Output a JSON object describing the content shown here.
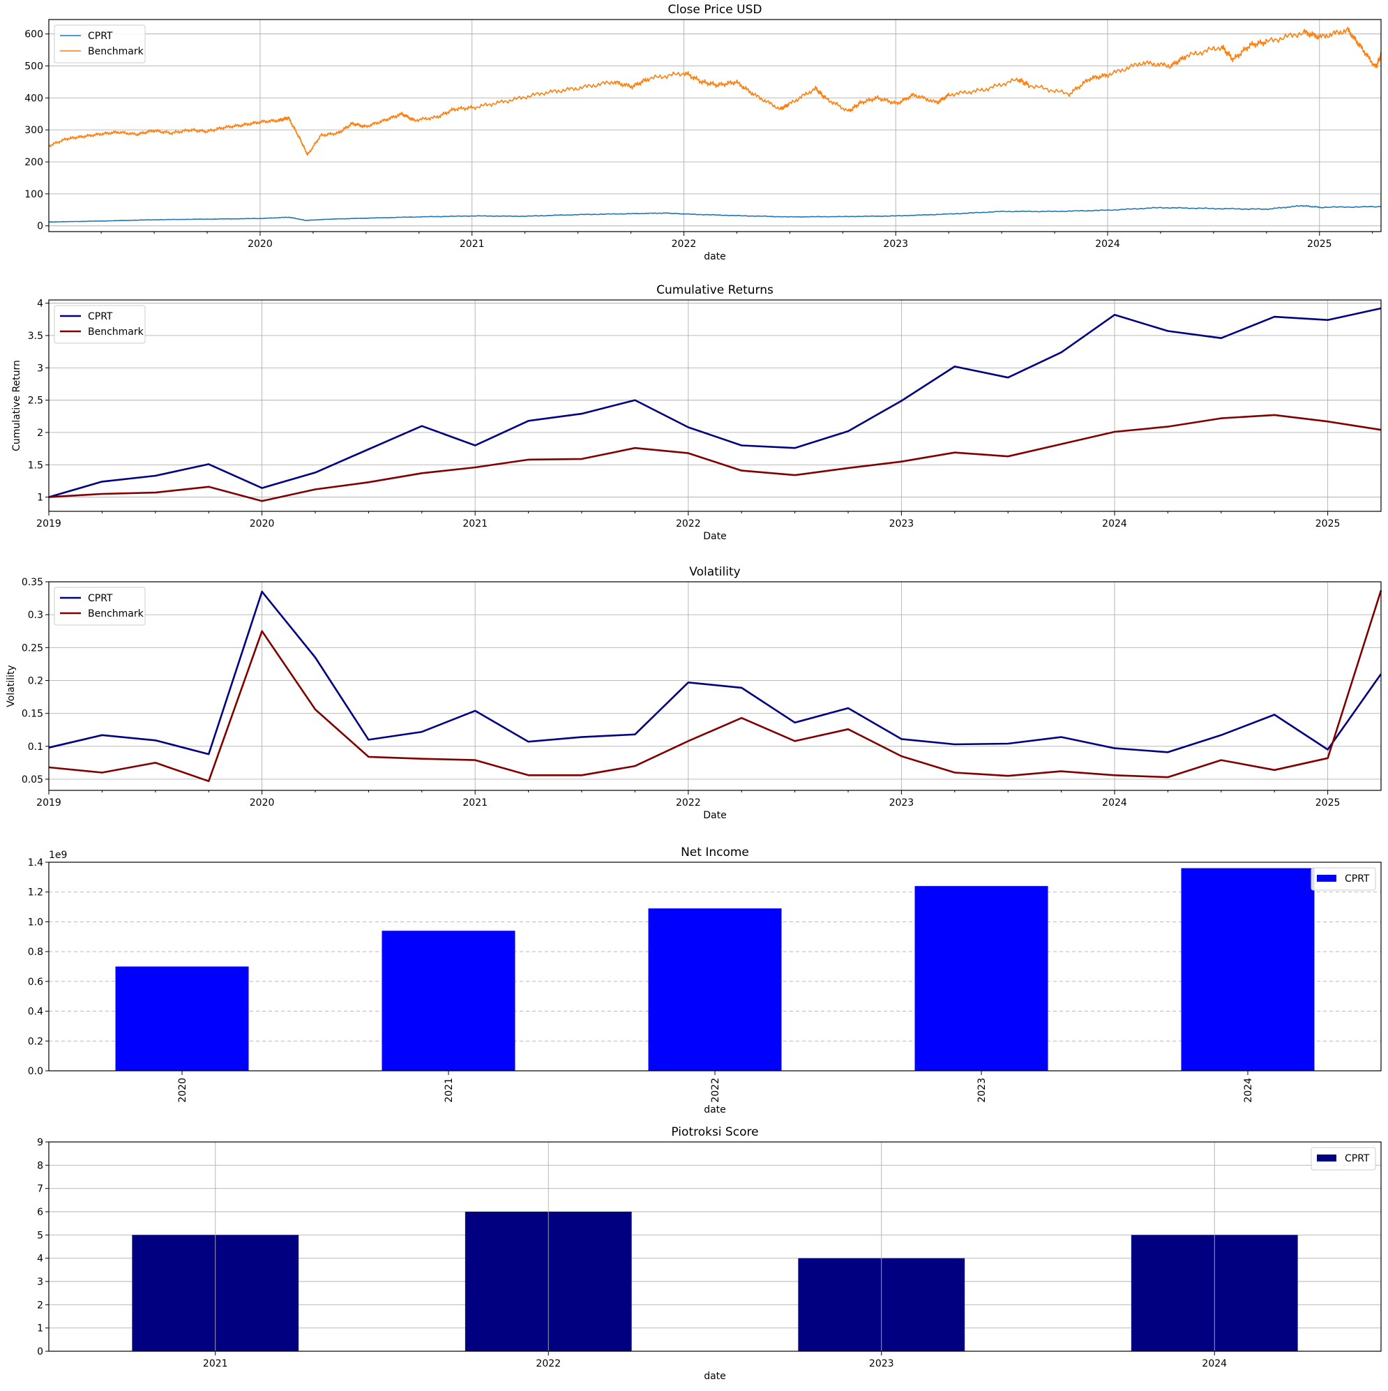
{
  "chart_data": [
    {
      "type": "line",
      "title": "Close Price USD",
      "xlabel": "date",
      "ylabel": "",
      "ylim": [
        -18,
        645
      ],
      "xlim": [
        "2019-01-02",
        "2025-04-17"
      ],
      "yticks": [
        0,
        100,
        200,
        300,
        400,
        500,
        600
      ],
      "xticks": [
        "2020",
        "2021",
        "2022",
        "2023",
        "2024",
        "2025"
      ],
      "grid": "both",
      "legend": "top-left",
      "series": [
        {
          "name": "CPRT",
          "color": "#1f77b4",
          "x": [
            "2019-01-02",
            "2019-04-01",
            "2019-07-01",
            "2019-10-01",
            "2020-01-02",
            "2020-02-20",
            "2020-03-20",
            "2020-05-01",
            "2020-07-01",
            "2020-10-01",
            "2021-01-04",
            "2021-04-01",
            "2021-07-01",
            "2021-10-01",
            "2021-12-01",
            "2022-01-03",
            "2022-04-01",
            "2022-07-01",
            "2022-10-03",
            "2023-01-03",
            "2023-04-03",
            "2023-07-03",
            "2023-10-02",
            "2024-01-02",
            "2024-04-01",
            "2024-07-01",
            "2024-10-01",
            "2024-12-02",
            "2025-01-02",
            "2025-04-17"
          ],
          "values": [
            12,
            15,
            19,
            21,
            23,
            27,
            17,
            21,
            24,
            28,
            31,
            30,
            35,
            38,
            40,
            37,
            32,
            28,
            29,
            31,
            37,
            45,
            45,
            49,
            57,
            54,
            52,
            63,
            58,
            60
          ]
        },
        {
          "name": "Benchmark",
          "color": "#ff7f0e",
          "x": [
            "2019-01-02",
            "2019-02-01",
            "2019-03-01",
            "2019-04-01",
            "2019-05-01",
            "2019-06-03",
            "2019-07-01",
            "2019-08-01",
            "2019-09-03",
            "2019-10-01",
            "2019-11-01",
            "2019-12-02",
            "2020-01-02",
            "2020-02-03",
            "2020-02-19",
            "2020-03-09",
            "2020-03-23",
            "2020-04-15",
            "2020-05-15",
            "2020-06-08",
            "2020-07-01",
            "2020-08-03",
            "2020-09-02",
            "2020-09-23",
            "2020-11-02",
            "2020-12-01",
            "2021-01-04",
            "2021-03-01",
            "2021-05-03",
            "2021-07-01",
            "2021-09-01",
            "2021-10-04",
            "2021-11-01",
            "2022-01-03",
            "2022-02-01",
            "2022-03-01",
            "2022-04-01",
            "2022-05-02",
            "2022-06-16",
            "2022-07-01",
            "2022-08-16",
            "2022-09-01",
            "2022-10-12",
            "2022-11-01",
            "2022-12-01",
            "2023-01-03",
            "2023-02-01",
            "2023-03-13",
            "2023-04-03",
            "2023-06-01",
            "2023-07-31",
            "2023-08-18",
            "2023-10-27",
            "2023-12-01",
            "2024-01-02",
            "2024-03-01",
            "2024-04-19",
            "2024-05-15",
            "2024-07-16",
            "2024-08-05",
            "2024-09-03",
            "2024-10-01",
            "2024-12-06",
            "2025-01-02",
            "2025-02-19",
            "2025-03-13",
            "2025-04-08",
            "2025-04-17"
          ],
          "values": [
            250,
            272,
            279,
            287,
            293,
            286,
            298,
            290,
            300,
            295,
            308,
            315,
            325,
            330,
            338,
            275,
            222,
            283,
            290,
            320,
            310,
            330,
            350,
            330,
            340,
            365,
            370,
            390,
            415,
            430,
            450,
            435,
            460,
            478,
            450,
            440,
            450,
            410,
            365,
            380,
            430,
            400,
            358,
            385,
            400,
            382,
            410,
            385,
            410,
            425,
            458,
            440,
            412,
            460,
            472,
            510,
            500,
            530,
            560,
            520,
            565,
            575,
            605,
            590,
            612,
            560,
            495,
            535
          ]
        }
      ]
    },
    {
      "type": "line",
      "title": "Cumulative Returns",
      "xlabel": "Date",
      "ylabel": "Cumulative Return",
      "ylim": [
        0.78,
        4.05
      ],
      "xlim": [
        2019.0,
        2025.25
      ],
      "yticks": [
        1.0,
        1.5,
        2.0,
        2.5,
        3.0,
        3.5,
        4.0
      ],
      "xticks": [
        "2019",
        "2020",
        "2021",
        "2022",
        "2023",
        "2024",
        "2025"
      ],
      "grid": "both",
      "legend": "top-left",
      "x": [
        2019.0,
        2019.25,
        2019.5,
        2019.75,
        2020.0,
        2020.25,
        2020.5,
        2020.75,
        2021.0,
        2021.25,
        2021.5,
        2021.75,
        2022.0,
        2022.25,
        2022.5,
        2022.75,
        2023.0,
        2023.25,
        2023.5,
        2023.75,
        2024.0,
        2024.25,
        2024.5,
        2024.75,
        2025.0,
        2025.25
      ],
      "series": [
        {
          "name": "CPRT",
          "color": "#000080",
          "values": [
            1.0,
            1.24,
            1.33,
            1.51,
            1.14,
            1.38,
            1.74,
            2.1,
            1.8,
            2.18,
            2.29,
            2.5,
            2.08,
            1.8,
            1.76,
            2.02,
            2.49,
            3.02,
            2.85,
            3.24,
            3.82,
            3.57,
            3.46,
            3.79,
            3.74,
            3.92
          ]
        },
        {
          "name": "Benchmark",
          "color": "#800000",
          "values": [
            1.0,
            1.05,
            1.07,
            1.16,
            0.94,
            1.12,
            1.23,
            1.37,
            1.46,
            1.58,
            1.59,
            1.76,
            1.68,
            1.41,
            1.34,
            1.45,
            1.55,
            1.69,
            1.63,
            1.82,
            2.01,
            2.09,
            2.22,
            2.27,
            2.17,
            2.04
          ]
        }
      ]
    },
    {
      "type": "line",
      "title": "Volatility",
      "xlabel": "Date",
      "ylabel": "Volatility",
      "ylim": [
        0.033,
        0.35
      ],
      "xlim": [
        2019.0,
        2025.25
      ],
      "yticks": [
        0.05,
        0.1,
        0.15,
        0.2,
        0.25,
        0.3,
        0.35
      ],
      "xticks": [
        "2019",
        "2020",
        "2021",
        "2022",
        "2023",
        "2024",
        "2025"
      ],
      "grid": "both",
      "legend": "top-left",
      "x": [
        2019.0,
        2019.25,
        2019.5,
        2019.75,
        2020.0,
        2020.25,
        2020.5,
        2020.75,
        2021.0,
        2021.25,
        2021.5,
        2021.75,
        2022.0,
        2022.25,
        2022.5,
        2022.75,
        2023.0,
        2023.25,
        2023.5,
        2023.75,
        2024.0,
        2024.25,
        2024.5,
        2024.75,
        2025.0,
        2025.25
      ],
      "series": [
        {
          "name": "CPRT",
          "color": "#000080",
          "values": [
            0.098,
            0.117,
            0.109,
            0.088,
            0.335,
            0.235,
            0.11,
            0.122,
            0.154,
            0.107,
            0.114,
            0.118,
            0.197,
            0.189,
            0.136,
            0.158,
            0.111,
            0.103,
            0.104,
            0.114,
            0.097,
            0.091,
            0.117,
            0.148,
            0.095,
            0.21
          ]
        },
        {
          "name": "Benchmark",
          "color": "#800000",
          "values": [
            0.068,
            0.06,
            0.075,
            0.047,
            0.275,
            0.156,
            0.084,
            0.081,
            0.079,
            0.056,
            0.056,
            0.07,
            0.108,
            0.143,
            0.108,
            0.126,
            0.085,
            0.06,
            0.055,
            0.062,
            0.056,
            0.053,
            0.079,
            0.064,
            0.082,
            0.337
          ]
        }
      ]
    },
    {
      "type": "bar",
      "title": "Net Income",
      "xlabel": "date",
      "ylabel": "",
      "offset_label": "1e9",
      "ylim": [
        0,
        1.4
      ],
      "yticks": [
        "0.0",
        "0.2",
        "0.4",
        "0.6",
        "0.8",
        "1.0",
        "1.2",
        "1.4"
      ],
      "grid": "y-dashed",
      "legend": "top-right",
      "categories": [
        "2020",
        "2021",
        "2022",
        "2023",
        "2024"
      ],
      "series": [
        {
          "name": "CPRT",
          "color": "#0000ff",
          "values": [
            0.7,
            0.94,
            1.09,
            1.24,
            1.36
          ]
        }
      ]
    },
    {
      "type": "bar",
      "title": "Piotroksi Score",
      "xlabel": "date",
      "ylabel": "",
      "ylim": [
        0,
        9
      ],
      "yticks": [
        "0",
        "1",
        "2",
        "3",
        "4",
        "5",
        "6",
        "7",
        "8",
        "9"
      ],
      "grid": "both",
      "legend": "top-right",
      "categories": [
        "2021",
        "2022",
        "2023",
        "2024"
      ],
      "series": [
        {
          "name": "CPRT",
          "color": "#000080",
          "values": [
            5,
            6,
            4,
            5
          ]
        }
      ]
    }
  ]
}
